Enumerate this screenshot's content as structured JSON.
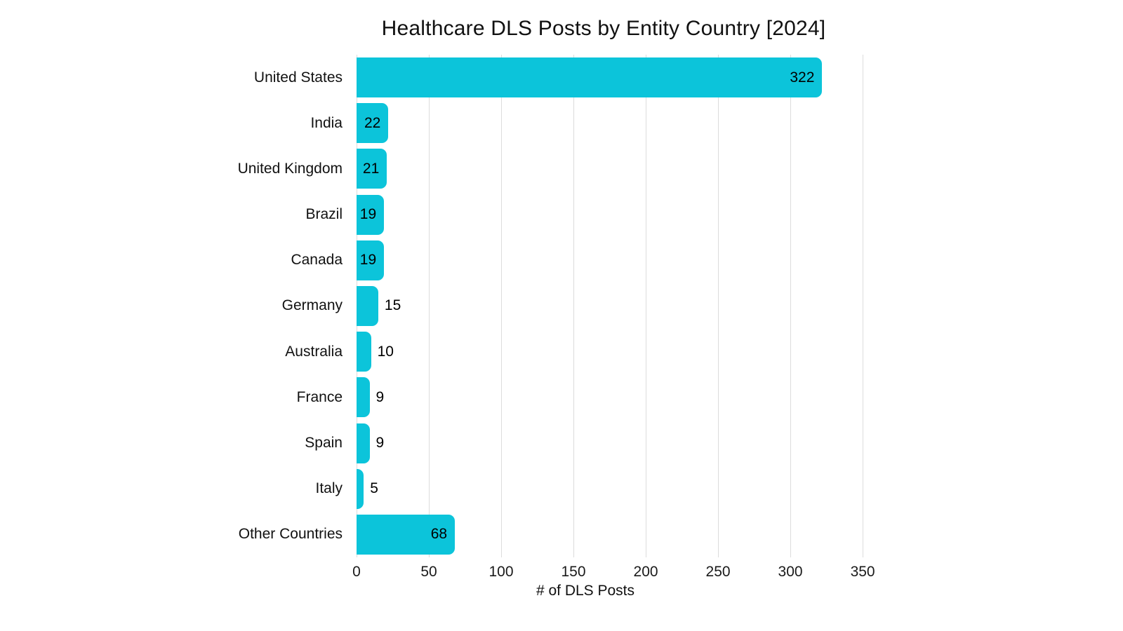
{
  "page": {
    "background_color": "#ffffff",
    "text_color": "#111111"
  },
  "chart_data": {
    "type": "bar",
    "orientation": "horizontal",
    "title": "Healthcare DLS Posts by Entity Country [2024]",
    "xlabel": "# of DLS Posts",
    "ylabel": "",
    "categories": [
      "United States",
      "India",
      "United Kingdom",
      "Brazil",
      "Canada",
      "Germany",
      "Australia",
      "France",
      "Spain",
      "Italy",
      "Other Countries"
    ],
    "values": [
      322,
      22,
      21,
      19,
      19,
      15,
      10,
      9,
      9,
      5,
      68
    ],
    "xlim": [
      0,
      365
    ],
    "xticks": [
      0,
      50,
      100,
      150,
      200,
      250,
      300,
      350
    ],
    "grid": true,
    "legend": false,
    "value_labels": true,
    "bar_color": "#0cc4da",
    "gridline_color": "#dcdcdc",
    "label_color": "#111111"
  }
}
